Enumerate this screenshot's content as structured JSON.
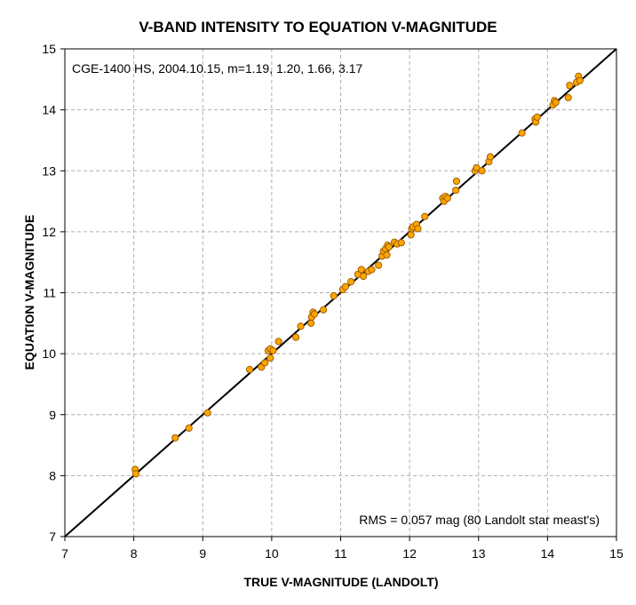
{
  "chart_data": {
    "type": "scatter",
    "title": "V-BAND INTENSITY TO EQUATION V-MAGNITUDE",
    "xlabel": "TRUE V-MAGNITUDE (LANDOLT)",
    "ylabel": "EQUATION V-MAGNITUDE",
    "xlim": [
      7,
      15
    ],
    "ylim": [
      7,
      15
    ],
    "xticks": [
      "7",
      "8",
      "9",
      "10",
      "11",
      "12",
      "13",
      "14",
      "15"
    ],
    "yticks": [
      "7",
      "8",
      "9",
      "10",
      "11",
      "12",
      "13",
      "14",
      "15"
    ],
    "grid": true,
    "annotation_top": "CGE-1400 HS, 2004.10.15, m=1.19, 1.20, 1.66, 3.17",
    "annotation_bottom": "RMS = 0.057 mag (80 Landolt star meast's)",
    "point_color": "#ffa500",
    "point_edge_color": "#a06000",
    "line_color": "#000000",
    "fit_line": {
      "x": [
        7,
        15
      ],
      "y": [
        7,
        15
      ]
    },
    "points": [
      {
        "x": 8.02,
        "y": 8.1
      },
      {
        "x": 8.03,
        "y": 8.03
      },
      {
        "x": 8.6,
        "y": 8.62
      },
      {
        "x": 8.8,
        "y": 8.78
      },
      {
        "x": 9.07,
        "y": 9.03
      },
      {
        "x": 9.68,
        "y": 9.74
      },
      {
        "x": 9.85,
        "y": 9.78
      },
      {
        "x": 9.9,
        "y": 9.85
      },
      {
        "x": 9.95,
        "y": 10.05
      },
      {
        "x": 9.98,
        "y": 10.08
      },
      {
        "x": 9.98,
        "y": 9.93
      },
      {
        "x": 10.02,
        "y": 10.05
      },
      {
        "x": 10.1,
        "y": 10.2
      },
      {
        "x": 10.35,
        "y": 10.27
      },
      {
        "x": 10.42,
        "y": 10.45
      },
      {
        "x": 10.57,
        "y": 10.5
      },
      {
        "x": 10.58,
        "y": 10.6
      },
      {
        "x": 10.6,
        "y": 10.68
      },
      {
        "x": 10.62,
        "y": 10.65
      },
      {
        "x": 10.75,
        "y": 10.72
      },
      {
        "x": 10.9,
        "y": 10.95
      },
      {
        "x": 11.03,
        "y": 11.05
      },
      {
        "x": 11.07,
        "y": 11.1
      },
      {
        "x": 11.15,
        "y": 11.18
      },
      {
        "x": 11.25,
        "y": 11.3
      },
      {
        "x": 11.3,
        "y": 11.38
      },
      {
        "x": 11.33,
        "y": 11.27
      },
      {
        "x": 11.4,
        "y": 11.35
      },
      {
        "x": 11.45,
        "y": 11.38
      },
      {
        "x": 11.55,
        "y": 11.45
      },
      {
        "x": 11.6,
        "y": 11.6
      },
      {
        "x": 11.62,
        "y": 11.68
      },
      {
        "x": 11.65,
        "y": 11.72
      },
      {
        "x": 11.67,
        "y": 11.62
      },
      {
        "x": 11.68,
        "y": 11.78
      },
      {
        "x": 11.7,
        "y": 11.75
      },
      {
        "x": 11.78,
        "y": 11.83
      },
      {
        "x": 11.82,
        "y": 11.8
      },
      {
        "x": 11.88,
        "y": 11.82
      },
      {
        "x": 12.02,
        "y": 11.95
      },
      {
        "x": 12.03,
        "y": 12.05
      },
      {
        "x": 12.05,
        "y": 12.08
      },
      {
        "x": 12.1,
        "y": 12.12
      },
      {
        "x": 12.12,
        "y": 12.05
      },
      {
        "x": 12.22,
        "y": 12.25
      },
      {
        "x": 12.48,
        "y": 12.55
      },
      {
        "x": 12.5,
        "y": 12.5
      },
      {
        "x": 12.52,
        "y": 12.58
      },
      {
        "x": 12.55,
        "y": 12.55
      },
      {
        "x": 12.67,
        "y": 12.68
      },
      {
        "x": 12.68,
        "y": 12.83
      },
      {
        "x": 12.95,
        "y": 13.0
      },
      {
        "x": 12.97,
        "y": 13.05
      },
      {
        "x": 13.05,
        "y": 13.0
      },
      {
        "x": 13.15,
        "y": 13.15
      },
      {
        "x": 13.17,
        "y": 13.23
      },
      {
        "x": 13.63,
        "y": 13.62
      },
      {
        "x": 13.82,
        "y": 13.85
      },
      {
        "x": 13.83,
        "y": 13.8
      },
      {
        "x": 13.85,
        "y": 13.88
      },
      {
        "x": 14.08,
        "y": 14.08
      },
      {
        "x": 14.1,
        "y": 14.15
      },
      {
        "x": 14.12,
        "y": 14.12
      },
      {
        "x": 14.3,
        "y": 14.2
      },
      {
        "x": 14.32,
        "y": 14.4
      },
      {
        "x": 14.42,
        "y": 14.45
      },
      {
        "x": 14.45,
        "y": 14.55
      },
      {
        "x": 14.47,
        "y": 14.48
      }
    ]
  }
}
